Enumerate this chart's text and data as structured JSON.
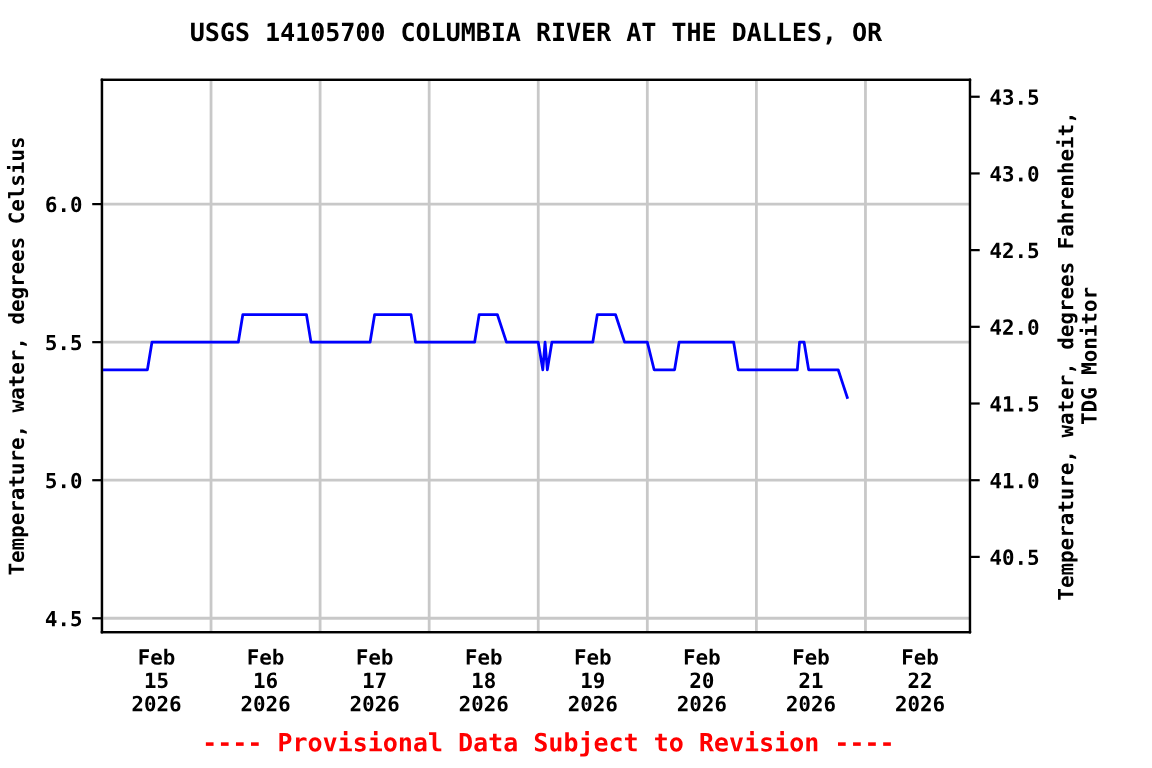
{
  "chart_data": {
    "type": "line",
    "title": "USGS 14105700 COLUMBIA RIVER AT THE DALLES, OR",
    "ylabel": "Temperature, water, degrees Celsius",
    "y2label": "Temperature, water, degrees Fahrenheit,\nTDG Monitor",
    "annotations": [
      "---- Provisional Data Subject to Revision ----"
    ],
    "xlim": [
      "2026-02-15T00:00",
      "2026-02-22T23:00"
    ],
    "xticks": [
      {
        "value": "2026-02-15T00:00",
        "label": null
      },
      {
        "value": "2026-02-15T12:00",
        "label": "Feb\n15\n2026"
      },
      {
        "value": "2026-02-16T00:00",
        "label": null
      },
      {
        "value": "2026-02-16T12:00",
        "label": "Feb\n16\n2026"
      },
      {
        "value": "2026-02-17T00:00",
        "label": null
      },
      {
        "value": "2026-02-17T12:00",
        "label": "Feb\n17\n2026"
      },
      {
        "value": "2026-02-18T00:00",
        "label": null
      },
      {
        "value": "2026-02-18T12:00",
        "label": "Feb\n18\n2026"
      },
      {
        "value": "2026-02-19T00:00",
        "label": null
      },
      {
        "value": "2026-02-19T12:00",
        "label": "Feb\n19\n2026"
      },
      {
        "value": "2026-02-20T00:00",
        "label": null
      },
      {
        "value": "2026-02-20T12:00",
        "label": "Feb\n20\n2026"
      },
      {
        "value": "2026-02-21T00:00",
        "label": null
      },
      {
        "value": "2026-02-21T12:00",
        "label": "Feb\n21\n2026"
      },
      {
        "value": "2026-02-22T00:00",
        "label": null
      },
      {
        "value": "2026-02-22T12:00",
        "label": "Feb\n22\n2026"
      }
    ],
    "ylim": [
      4.45,
      6.45
    ],
    "yticks": [
      {
        "value": 4.5,
        "label": "4.5"
      },
      {
        "value": 5.0,
        "label": "5.0"
      },
      {
        "value": 5.5,
        "label": "5.5"
      },
      {
        "value": 6.0,
        "label": "6.0"
      }
    ],
    "y2lim": [
      40.01,
      43.61
    ],
    "y2ticks": [
      {
        "value": 40.5,
        "label": "40.5"
      },
      {
        "value": 41.0,
        "label": "41.0"
      },
      {
        "value": 41.5,
        "label": "41.5"
      },
      {
        "value": 42.0,
        "label": "42.0"
      },
      {
        "value": 42.5,
        "label": "42.5"
      },
      {
        "value": 43.0,
        "label": "43.0"
      },
      {
        "value": 43.5,
        "label": "43.5"
      }
    ],
    "grid": true,
    "series": [
      {
        "color": "#0000ff",
        "x": [
          "2026-02-15T00:00",
          "2026-02-15T10:00",
          "2026-02-15T11:00",
          "2026-02-16T06:00",
          "2026-02-16T07:00",
          "2026-02-16T21:00",
          "2026-02-16T22:00",
          "2026-02-17T11:00",
          "2026-02-17T12:00",
          "2026-02-17T20:00",
          "2026-02-17T21:00",
          "2026-02-18T10:00",
          "2026-02-18T11:00",
          "2026-02-18T15:00",
          "2026-02-18T17:00",
          "2026-02-19T00:00",
          "2026-02-19T01:00",
          "2026-02-19T01:30",
          "2026-02-19T02:00",
          "2026-02-19T03:00",
          "2026-02-19T12:00",
          "2026-02-19T13:00",
          "2026-02-19T17:00",
          "2026-02-19T19:00",
          "2026-02-20T00:00",
          "2026-02-20T01:30",
          "2026-02-20T06:00",
          "2026-02-20T07:00",
          "2026-02-20T19:00",
          "2026-02-20T20:00",
          "2026-02-21T09:00",
          "2026-02-21T09:30",
          "2026-02-21T10:30",
          "2026-02-21T11:30",
          "2026-02-21T18:00",
          "2026-02-21T19:00",
          "2026-02-21T20:00"
        ],
        "values": [
          5.4,
          5.4,
          5.5,
          5.5,
          5.6,
          5.6,
          5.5,
          5.5,
          5.6,
          5.6,
          5.5,
          5.5,
          5.6,
          5.6,
          5.5,
          5.5,
          5.4,
          5.5,
          5.4,
          5.5,
          5.5,
          5.6,
          5.6,
          5.5,
          5.5,
          5.4,
          5.4,
          5.5,
          5.5,
          5.4,
          5.4,
          5.5,
          5.5,
          5.4,
          5.4,
          5.35,
          5.3
        ]
      }
    ]
  }
}
